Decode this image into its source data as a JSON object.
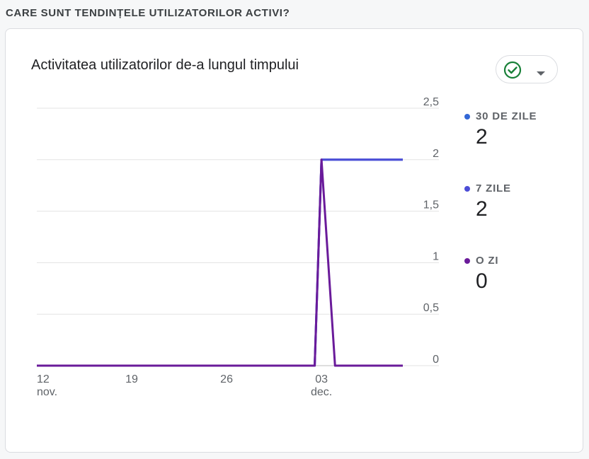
{
  "section": {
    "title": "CARE SUNT TENDINȚELE UTILIZATORILOR ACTIVI?"
  },
  "card": {
    "title": "Activitatea utilizatorilor de-a lungul timpului",
    "status_icon": "check-circle-icon",
    "dropdown_icon": "caret-down-icon",
    "status_color": "#188038"
  },
  "legend": [
    {
      "label": "30 DE ZILE",
      "value": "2",
      "color": "#3367d6"
    },
    {
      "label": "7 ZILE",
      "value": "2",
      "color": "#4c4dd6"
    },
    {
      "label": "O ZI",
      "value": "0",
      "color": "#6a1b9a"
    }
  ],
  "chart_data": {
    "type": "line",
    "ylim": [
      0,
      2.5
    ],
    "y_ticks": [
      "0",
      "0,5",
      "1",
      "1,5",
      "2",
      "2,5"
    ],
    "x_ticks": [
      {
        "day": "12",
        "month": "nov.",
        "x": 0
      },
      {
        "day": "19",
        "month": "",
        "x": 7
      },
      {
        "day": "26",
        "month": "",
        "x": 14
      },
      {
        "day": "03",
        "month": "dec.",
        "x": 21
      }
    ],
    "x_range": [
      0,
      27
    ],
    "series": [
      {
        "name": "30 DE ZILE",
        "color": "#3367d6",
        "x": [
          0,
          20.5,
          21,
          27
        ],
        "y": [
          0,
          0,
          2,
          2
        ]
      },
      {
        "name": "7 ZILE",
        "color": "#4c4dd6",
        "x": [
          0,
          20.5,
          21,
          27
        ],
        "y": [
          0,
          0,
          2,
          2
        ]
      },
      {
        "name": "O ZI",
        "color": "#6a1b9a",
        "x": [
          0,
          20.5,
          21,
          22,
          27
        ],
        "y": [
          0,
          0,
          2,
          0,
          0
        ]
      }
    ]
  }
}
